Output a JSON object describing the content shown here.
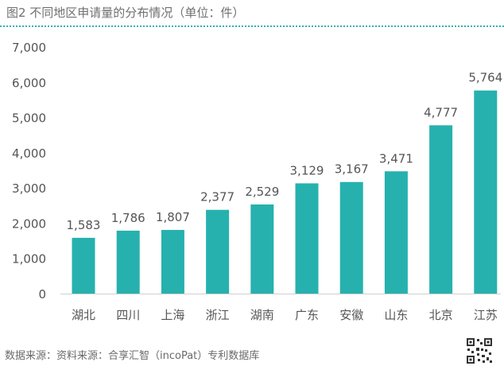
{
  "header": {
    "title": "图2 不同地区申请量的分布情况（单位：件）"
  },
  "chart_data": {
    "type": "bar",
    "title": "图2 不同地区申请量的分布情况（单位：件）",
    "categories": [
      "湖北",
      "四川",
      "上海",
      "浙江",
      "湖南",
      "广东",
      "安徽",
      "山东",
      "北京",
      "江苏"
    ],
    "values": [
      1583,
      1786,
      1807,
      2377,
      2529,
      3129,
      3167,
      3471,
      4777,
      5764
    ],
    "value_labels": [
      "1,583",
      "1,786",
      "1,807",
      "2,377",
      "2,529",
      "3,129",
      "3,167",
      "3,471",
      "4,777",
      "5,764"
    ],
    "y_ticks": [
      0,
      1000,
      2000,
      3000,
      4000,
      5000,
      6000,
      7000
    ],
    "y_tick_labels": [
      "0",
      "1,000",
      "2,000",
      "3,000",
      "4,000",
      "5,000",
      "6,000",
      "7,000"
    ],
    "ylim": [
      0,
      7000
    ],
    "xlabel": "",
    "ylabel": "",
    "grid": false,
    "legend": "none",
    "bar_color": "#26b1ae"
  },
  "footer": {
    "source": "数据来源：资料来源：合享汇智（incoPat）专利数据库"
  },
  "colors": {
    "accent": "#26b1ae",
    "rule": "#30b3aa",
    "text": "#555555"
  }
}
